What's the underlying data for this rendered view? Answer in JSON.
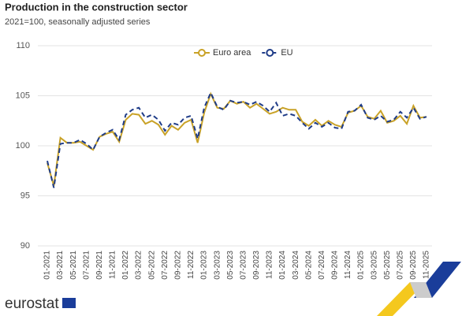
{
  "chart_data": {
    "type": "line",
    "title": "Production in the construction sector",
    "subtitle": "2021=100, seasonally adjusted series",
    "categories": [
      "01-2021",
      null,
      "03-2021",
      null,
      "05-2021",
      null,
      "07-2021",
      null,
      "09-2021",
      null,
      "11-2021",
      null,
      "01-2022",
      null,
      "03-2022",
      null,
      "05-2022",
      null,
      "07-2022",
      null,
      "09-2022",
      null,
      "11-2022",
      null,
      "01-2023",
      null,
      "03-2023",
      null,
      "05-2023",
      null,
      "07-2023",
      null,
      "09-2023",
      null,
      "11-2023",
      null,
      "01-2024",
      null,
      "03-2024",
      null,
      "05-2024",
      null,
      "07-2024",
      null,
      "09-2024",
      null,
      "11-2024",
      null,
      "01-2025",
      null,
      "03-2025",
      null,
      "05-2025",
      null,
      "07-2025",
      null,
      "09-2025",
      null,
      "11-2025"
    ],
    "series": [
      {
        "name": "Euro area",
        "color": "#c9a227",
        "dash": false,
        "values": [
          98.3,
          96.0,
          100.8,
          100.3,
          100.3,
          100.4,
          100.0,
          99.6,
          100.9,
          101.2,
          101.4,
          100.4,
          102.6,
          103.2,
          103.1,
          102.2,
          102.5,
          102.1,
          101.1,
          102.0,
          101.6,
          102.3,
          102.6,
          100.3,
          103.3,
          105.2,
          103.8,
          103.7,
          104.5,
          104.2,
          104.4,
          103.8,
          104.2,
          103.7,
          103.2,
          103.4,
          103.8,
          103.6,
          103.6,
          102.4,
          102.0,
          102.6,
          102.0,
          102.5,
          102.1,
          101.9,
          103.3,
          103.5,
          104.0,
          102.9,
          102.7,
          103.5,
          102.3,
          102.5,
          103.0,
          102.2,
          104.0,
          102.8,
          102.9
        ]
      },
      {
        "name": "EU",
        "color": "#1f3c88",
        "dash": true,
        "values": [
          98.5,
          95.8,
          100.2,
          100.3,
          100.3,
          100.6,
          100.2,
          99.6,
          100.9,
          101.3,
          101.6,
          100.6,
          103.1,
          103.6,
          103.8,
          102.8,
          103.1,
          102.6,
          101.5,
          102.3,
          102.1,
          102.8,
          103.0,
          100.7,
          103.8,
          105.3,
          103.9,
          103.6,
          104.5,
          104.3,
          104.4,
          104.1,
          104.4,
          104.0,
          103.4,
          104.3,
          103.0,
          103.2,
          103.0,
          102.3,
          101.7,
          102.3,
          101.9,
          102.3,
          101.8,
          101.7,
          103.4,
          103.5,
          104.1,
          102.8,
          102.6,
          103.0,
          102.4,
          102.6,
          103.4,
          102.8,
          103.8,
          102.7,
          102.9
        ]
      }
    ],
    "ylim": [
      90,
      110
    ],
    "yticks": [
      90,
      95,
      100,
      105,
      110
    ],
    "grid": true,
    "legend": "top"
  },
  "footer": {
    "logo": "eurostat"
  }
}
